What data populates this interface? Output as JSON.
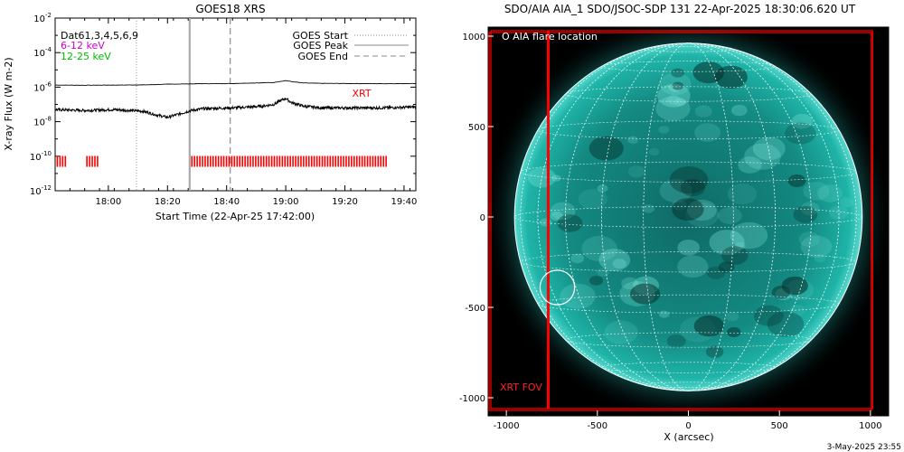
{
  "left_panel": {
    "title": "GOES18 XRS",
    "legend_left": [
      {
        "text": "Dat61,3,4,5,6,9",
        "color": "#000000"
      },
      {
        "text": "6-12 keV",
        "color": "#cc00cc"
      },
      {
        "text": "12-25 keV",
        "color": "#00bb00"
      }
    ],
    "legend_right": [
      {
        "text": "GOES Start",
        "style": "dotted"
      },
      {
        "text": "GOES Peak",
        "style": "solid"
      },
      {
        "text": "GOES End",
        "style": "dashed"
      }
    ],
    "xrt_label": "XRT",
    "xrt_color": "#ff0000"
  },
  "right_panel": {
    "title": "SDO/AIA AIA_1 SDO/JSOC-SDP 131 22-Apr-2025 18:30:06.620 UT",
    "flare_legend": "O AIA flare location",
    "fov_label": "XRT FOV",
    "xlabel": "X (arcsec)",
    "footer": "3-May-2025 23:55",
    "disk_color": "#1aa9a0",
    "fov_color": "#ff0000"
  },
  "chart_data": [
    {
      "type": "line",
      "title": "GOES18 XRS",
      "xlabel": "Start Time (22-Apr-25 17:42:00)",
      "ylabel": "X-ray Flux (W m-2)",
      "x_unit": "minutes after 17:42",
      "xlim": [
        0,
        122
      ],
      "ylim_log10": [
        -12,
        -2
      ],
      "y_scale": "log",
      "xticks": [
        {
          "x": 18,
          "label": "18:00"
        },
        {
          "x": 38,
          "label": "18:20"
        },
        {
          "x": 58,
          "label": "18:40"
        },
        {
          "x": 78,
          "label": "19:00"
        },
        {
          "x": 98,
          "label": "19:20"
        },
        {
          "x": 118,
          "label": "19:40"
        }
      ],
      "yticks": [
        {
          "exp": -12,
          "label": "10-12"
        },
        {
          "exp": -10,
          "label": "10-10"
        },
        {
          "exp": -8,
          "label": "10-8"
        },
        {
          "exp": -6,
          "label": "10-6"
        },
        {
          "exp": -4,
          "label": "10-4"
        },
        {
          "exp": -2,
          "label": "10-2"
        }
      ],
      "series": [
        {
          "name": "6-12 keV",
          "style": "thin",
          "x": [
            0,
            10,
            20,
            30,
            38,
            46,
            50,
            60,
            66,
            70,
            74,
            76,
            78,
            80,
            84,
            90,
            100,
            110,
            122
          ],
          "log10_y": [
            -5.88,
            -5.89,
            -5.88,
            -5.87,
            -5.83,
            -5.81,
            -5.8,
            -5.79,
            -5.76,
            -5.75,
            -5.73,
            -5.67,
            -5.62,
            -5.68,
            -5.76,
            -5.78,
            -5.79,
            -5.8,
            -5.79
          ]
        },
        {
          "name": "12-25 keV",
          "style": "noisy",
          "x": [
            0,
            10,
            20,
            30,
            34,
            38,
            42,
            46,
            50,
            60,
            66,
            70,
            74,
            76,
            78,
            80,
            84,
            90,
            100,
            110,
            122
          ],
          "log10_y": [
            -7.3,
            -7.35,
            -7.3,
            -7.4,
            -7.6,
            -7.75,
            -7.55,
            -7.35,
            -7.25,
            -7.2,
            -7.15,
            -7.1,
            -7.0,
            -6.8,
            -6.65,
            -6.9,
            -7.1,
            -7.2,
            -7.2,
            -7.2,
            -7.15
          ]
        }
      ],
      "vlines": [
        {
          "x": 27.5,
          "style": "dotted",
          "label": "GOES Start"
        },
        {
          "x": 45.5,
          "style": "solid",
          "label": "XRT"
        },
        {
          "x": 59.2,
          "style": "dashed",
          "label": "GOES End"
        }
      ],
      "xrt_coverage": [
        {
          "x0": 0.5,
          "x1": 4.0
        },
        {
          "x0": 10.5,
          "x1": 14.5
        },
        {
          "x0": 46.0,
          "x1": 112.0
        }
      ],
      "xrt_level_log10": -10.3
    },
    {
      "type": "scatter",
      "title": "SDO/AIA AIA_1 SDO/JSOC-SDP 131 22-Apr-2025 18:30:06.620 UT",
      "xlabel": "X (arcsec)",
      "xlim": [
        -1100,
        1100
      ],
      "ylim": [
        -1100,
        1050
      ],
      "xticks": [
        -1000,
        -500,
        0,
        500,
        1000
      ],
      "yticks": [
        -1000,
        -500,
        0,
        500,
        1000
      ],
      "solar_radius_arcsec": 955,
      "flare_location": {
        "x": -720,
        "y": -390,
        "r": 95
      },
      "xrt_fov_boxes": [
        {
          "x0": -1095,
          "y0": -1070,
          "x1": 1005,
          "y1": 1020
        },
        {
          "x0": -1085,
          "y0": -1060,
          "x1": 1012,
          "y1": 1030
        }
      ],
      "xrt_fov_left_edge_x": -770
    }
  ]
}
